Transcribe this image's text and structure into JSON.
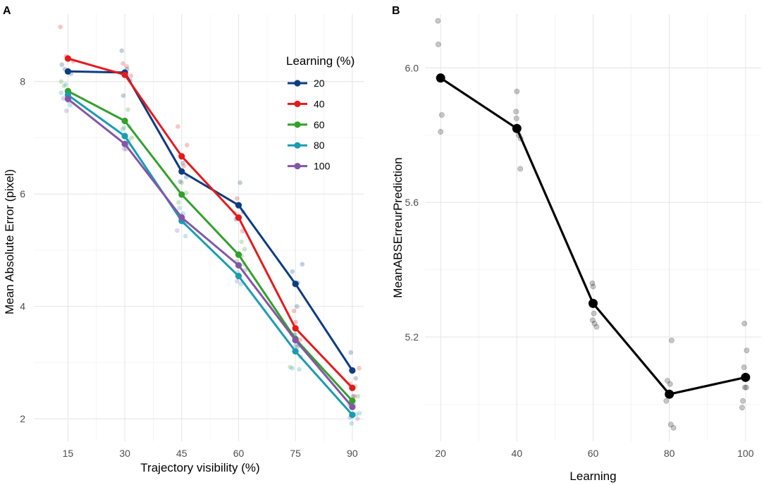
{
  "chart_data": [
    {
      "panel": "A",
      "type": "line",
      "title": "",
      "xlabel": "Trajectory visibility (%)",
      "ylabel": "Mean Absolute Error (pixel)",
      "x": [
        15,
        30,
        45,
        60,
        75,
        90
      ],
      "xticks": [
        15,
        30,
        45,
        60,
        75,
        90
      ],
      "xlim": [
        6,
        93
      ],
      "yticks": [
        2,
        4,
        6,
        8
      ],
      "ylim": [
        1.6,
        9.2
      ],
      "grid": true,
      "legend": {
        "title": "Learning (%)",
        "placement": "top-right"
      },
      "series": [
        {
          "name": "20",
          "color": "#0d3b84",
          "values": [
            8.18,
            8.16,
            6.4,
            5.8,
            4.4,
            2.86
          ],
          "points": [
            [
              14.2,
              8.22
            ],
            [
              15.8,
              8.14
            ],
            [
              13.4,
              8.3
            ],
            [
              29.2,
              8.55
            ],
            [
              30.6,
              8.22
            ],
            [
              31.4,
              8.02
            ],
            [
              29.6,
              7.75
            ],
            [
              45.3,
              6.55
            ],
            [
              44.6,
              6.22
            ],
            [
              46.2,
              6.3
            ],
            [
              60.4,
              6.2
            ],
            [
              61.2,
              5.68
            ],
            [
              59.3,
              5.55
            ],
            [
              74.2,
              4.62
            ],
            [
              76.8,
              4.75
            ],
            [
              75.6,
              4.42
            ],
            [
              75.4,
              4.0
            ],
            [
              74.8,
              3.5
            ],
            [
              89.6,
              3.18
            ],
            [
              90.9,
              2.72
            ],
            [
              90.2,
              2.4
            ]
          ]
        },
        {
          "name": "40",
          "color": "#e41a1c",
          "values": [
            8.41,
            8.12,
            6.67,
            5.58,
            3.61,
            2.55
          ],
          "points": [
            [
              13.0,
              8.97
            ],
            [
              14.5,
              8.45
            ],
            [
              16.4,
              8.36
            ],
            [
              29.5,
              8.32
            ],
            [
              31.6,
              8.1
            ],
            [
              30.5,
              8.27
            ],
            [
              44.0,
              7.2
            ],
            [
              46.4,
              6.87
            ],
            [
              45.6,
              6.5
            ],
            [
              59.6,
              5.92
            ],
            [
              61.0,
              5.34
            ],
            [
              59.0,
              5.66
            ],
            [
              74.6,
              3.92
            ],
            [
              76.2,
              3.4
            ],
            [
              75.1,
              3.72
            ],
            [
              91.8,
              2.9
            ],
            [
              89.4,
              2.62
            ],
            [
              90.6,
              2.4
            ]
          ]
        },
        {
          "name": "60",
          "color": "#33a02c",
          "values": [
            7.83,
            7.3,
            5.99,
            4.92,
            3.42,
            2.32
          ],
          "points": [
            [
              14.0,
              7.92
            ],
            [
              15.4,
              7.72
            ],
            [
              13.2,
              8.0
            ],
            [
              30.8,
              7.5
            ],
            [
              29.8,
              7.18
            ],
            [
              31.8,
              7.0
            ],
            [
              45.0,
              6.2
            ],
            [
              46.2,
              6.02
            ],
            [
              44.2,
              5.85
            ],
            [
              60.8,
              5.15
            ],
            [
              59.5,
              4.8
            ],
            [
              61.6,
              5.02
            ],
            [
              74.6,
              3.48
            ],
            [
              75.8,
              3.3
            ],
            [
              73.6,
              2.92
            ],
            [
              90.8,
              2.58
            ],
            [
              89.2,
              2.25
            ],
            [
              91.5,
              2.4
            ]
          ]
        },
        {
          "name": "80",
          "color": "#1a9cb0",
          "values": [
            7.76,
            7.03,
            5.52,
            4.54,
            3.2,
            2.07
          ],
          "points": [
            [
              13.2,
              7.8
            ],
            [
              15.6,
              7.58
            ],
            [
              14.4,
              7.95
            ],
            [
              29.4,
              7.15
            ],
            [
              30.9,
              6.88
            ],
            [
              31.2,
              7.2
            ],
            [
              45.4,
              5.65
            ],
            [
              46.0,
              5.25
            ],
            [
              44.4,
              5.75
            ],
            [
              59.8,
              4.6
            ],
            [
              60.6,
              4.4
            ],
            [
              61.4,
              4.75
            ],
            [
              74.2,
              2.9
            ],
            [
              76.0,
              2.88
            ],
            [
              75.5,
              3.28
            ],
            [
              91.0,
              2.08
            ],
            [
              89.8,
              1.92
            ],
            [
              91.9,
              2.1
            ]
          ]
        },
        {
          "name": "100",
          "color": "#8456a6",
          "values": [
            7.69,
            6.89,
            5.58,
            4.73,
            3.4,
            2.21
          ],
          "points": [
            [
              13.8,
              7.7
            ],
            [
              15.2,
              7.65
            ],
            [
              14.6,
              7.48
            ],
            [
              29.8,
              6.8
            ],
            [
              31.0,
              6.95
            ],
            [
              30.4,
              6.8
            ],
            [
              43.8,
              5.35
            ],
            [
              45.8,
              5.48
            ],
            [
              44.8,
              5.62
            ],
            [
              59.6,
              4.45
            ],
            [
              60.8,
              4.9
            ],
            [
              61.8,
              4.65
            ],
            [
              75.0,
              3.3
            ],
            [
              74.0,
              3.5
            ],
            [
              76.4,
              3.1
            ],
            [
              89.4,
              2.02
            ],
            [
              90.4,
              2.25
            ],
            [
              91.4,
              2.0
            ]
          ]
        }
      ]
    },
    {
      "panel": "B",
      "type": "line",
      "title": "",
      "xlabel": "Learning",
      "ylabel": "MeanABSErreurPrediction",
      "x": [
        20,
        40,
        60,
        80,
        100
      ],
      "xticks": [
        20,
        40,
        60,
        80,
        100
      ],
      "xlim": [
        15.9,
        104.1
      ],
      "yticks": [
        5.2,
        5.6,
        6.0
      ],
      "ylim": [
        4.89,
        6.16
      ],
      "grid": true,
      "color": "#000000",
      "values": [
        5.97,
        5.82,
        5.3,
        5.03,
        5.08
      ],
      "points": [
        [
          19.3,
          6.14
        ],
        [
          19.4,
          6.07
        ],
        [
          20.5,
          5.97
        ],
        [
          20.3,
          5.86
        ],
        [
          20.0,
          5.81
        ],
        [
          40.0,
          5.93
        ],
        [
          39.8,
          5.87
        ],
        [
          39.9,
          5.85
        ],
        [
          40.5,
          5.8
        ],
        [
          41.0,
          5.79
        ],
        [
          40.9,
          5.7
        ],
        [
          59.8,
          5.36
        ],
        [
          60.0,
          5.35
        ],
        [
          60.2,
          5.27
        ],
        [
          59.9,
          5.25
        ],
        [
          60.4,
          5.24
        ],
        [
          60.9,
          5.23
        ],
        [
          80.6,
          5.19
        ],
        [
          79.5,
          5.07
        ],
        [
          80.2,
          5.06
        ],
        [
          79.2,
          5.01
        ],
        [
          80.4,
          4.94
        ],
        [
          81.1,
          4.93
        ],
        [
          99.7,
          5.24
        ],
        [
          100.3,
          5.16
        ],
        [
          99.6,
          5.11
        ],
        [
          100.2,
          5.05
        ],
        [
          99.8,
          5.05
        ],
        [
          99.3,
          5.01
        ],
        [
          99.1,
          4.99
        ]
      ]
    }
  ]
}
